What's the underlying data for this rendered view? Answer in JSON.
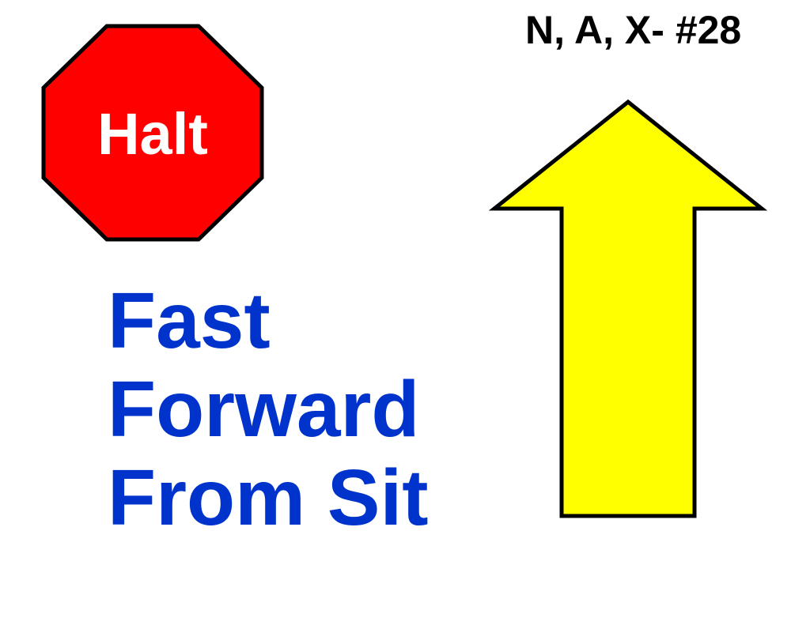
{
  "sign": {
    "code": "N, A, X- #28",
    "stop_label": "Halt",
    "instruction_lines": [
      "Fast",
      "Forward",
      "From Sit"
    ],
    "direction": "up-arrow-icon"
  },
  "colors": {
    "stop_fill": "#ff0000",
    "stop_outline": "#000000",
    "stop_text": "#ffffff",
    "instruction_text": "#0033cc",
    "arrow_fill": "#ffff00",
    "arrow_outline": "#000000",
    "code_text": "#000000"
  }
}
